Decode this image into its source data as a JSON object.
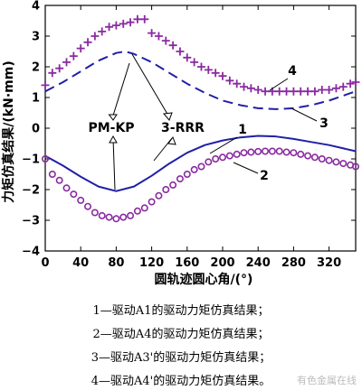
{
  "chart_data": {
    "type": "line",
    "xlabel": "圆轨迹圆心角/(°)",
    "ylabel": "力矩仿真结果/(kN·mm)",
    "xlim": [
      0,
      350
    ],
    "ylim": [
      -4,
      4
    ],
    "xticks": [
      0,
      40,
      80,
      120,
      160,
      200,
      240,
      280,
      320
    ],
    "yticks": [
      -4,
      -3,
      -2,
      -1,
      0,
      1,
      2,
      3,
      4
    ],
    "grid": false,
    "series": [
      {
        "name": "1",
        "style": "solid",
        "color": "#1f1fa8",
        "x": [
          0,
          20,
          40,
          60,
          80,
          100,
          120,
          140,
          160,
          180,
          200,
          220,
          240,
          260,
          280,
          300,
          320,
          350
        ],
        "y": [
          -0.9,
          -1.22,
          -1.58,
          -1.9,
          -2.05,
          -1.9,
          -1.55,
          -1.15,
          -0.8,
          -0.55,
          -0.4,
          -0.3,
          -0.25,
          -0.27,
          -0.35,
          -0.45,
          -0.55,
          -0.75
        ]
      },
      {
        "name": "2",
        "style": "circles",
        "color": "#8a2aa0",
        "x": [
          0,
          8,
          16,
          24,
          32,
          40,
          48,
          56,
          64,
          72,
          80,
          88,
          96,
          104,
          112,
          120,
          128,
          136,
          144,
          152,
          160,
          168,
          176,
          184,
          192,
          200,
          208,
          216,
          224,
          232,
          240,
          248,
          256,
          264,
          272,
          280,
          288,
          296,
          304,
          312,
          320,
          328,
          336,
          344,
          350
        ],
        "y": [
          -1.0,
          -1.5,
          -1.7,
          -1.95,
          -2.15,
          -2.35,
          -2.55,
          -2.75,
          -2.85,
          -2.9,
          -2.95,
          -2.9,
          -2.85,
          -2.7,
          -2.6,
          -2.4,
          -2.2,
          -2.0,
          -1.85,
          -1.65,
          -1.5,
          -1.35,
          -1.25,
          -1.1,
          -1.0,
          -0.95,
          -0.9,
          -0.85,
          -0.8,
          -0.78,
          -0.76,
          -0.75,
          -0.75,
          -0.75,
          -0.78,
          -0.8,
          -0.85,
          -0.9,
          -0.95,
          -1.0,
          -1.05,
          -1.1,
          -1.15,
          -1.2,
          -1.25
        ]
      },
      {
        "name": "3",
        "style": "dashed",
        "color": "#1f1fa8",
        "x": [
          0,
          20,
          40,
          60,
          80,
          90,
          100,
          120,
          140,
          160,
          180,
          200,
          220,
          240,
          260,
          280,
          300,
          320,
          340,
          350
        ],
        "y": [
          1.2,
          1.5,
          1.85,
          2.2,
          2.45,
          2.5,
          2.42,
          2.15,
          1.8,
          1.45,
          1.15,
          0.9,
          0.75,
          0.65,
          0.62,
          0.65,
          0.75,
          0.9,
          1.1,
          1.2
        ]
      },
      {
        "name": "4",
        "style": "plus",
        "color": "#8a2aa0",
        "x": [
          0,
          8,
          16,
          24,
          32,
          40,
          48,
          56,
          64,
          72,
          80,
          88,
          96,
          104,
          112,
          120,
          128,
          136,
          144,
          152,
          160,
          168,
          176,
          184,
          192,
          200,
          208,
          216,
          224,
          232,
          240,
          248,
          256,
          264,
          272,
          280,
          288,
          296,
          304,
          312,
          320,
          328,
          336,
          344,
          350
        ],
        "y": [
          1.4,
          1.8,
          1.95,
          2.15,
          2.35,
          2.6,
          2.8,
          3.0,
          3.15,
          3.3,
          3.35,
          3.4,
          3.45,
          3.55,
          3.55,
          3.1,
          3.0,
          2.85,
          2.7,
          2.5,
          2.3,
          2.15,
          2.0,
          1.9,
          1.8,
          1.7,
          1.55,
          1.45,
          1.35,
          1.3,
          1.25,
          1.2,
          1.2,
          1.2,
          1.2,
          1.2,
          1.2,
          1.2,
          1.2,
          1.25,
          1.25,
          1.3,
          1.35,
          1.45,
          1.5
        ]
      }
    ],
    "annotations": [
      {
        "label": "PM-KP",
        "x": 78,
        "y": 0.0
      },
      {
        "label": "3-RRR",
        "x": 158,
        "y": 0.0
      },
      {
        "label": "1",
        "x": 268,
        "y": 0.0
      },
      {
        "label": "2",
        "x": 290,
        "y": -1.55
      },
      {
        "label": "3",
        "x": 362,
        "y": 0.0
      },
      {
        "label": "4",
        "x": 322,
        "y": 2.0
      }
    ]
  },
  "legend_lines": [
    "1—驱动A1的驱动力矩仿真结果；",
    "2—驱动A4的驱动力矩仿真结果；",
    "3—驱动A3'的驱动力矩仿真结果；",
    "4—驱动A4'的驱动力矩仿真结果。"
  ],
  "watermark": "有色金属在线"
}
